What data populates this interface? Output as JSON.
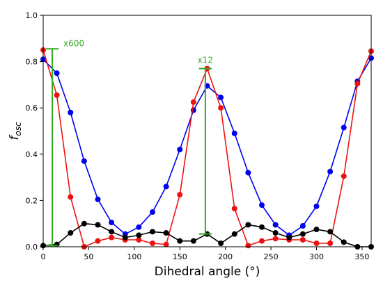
{
  "chart_data": {
    "type": "line",
    "xlabel": "Dihedral angle (°)",
    "ylabel_main": "f",
    "ylabel_sub": "osc",
    "xlim": [
      0,
      360
    ],
    "ylim": [
      0,
      1.0
    ],
    "xticks": [
      0,
      50,
      100,
      150,
      200,
      250,
      300,
      350
    ],
    "yticks": [
      0.0,
      0.2,
      0.4,
      0.6,
      0.8,
      1.0
    ],
    "ytick_labels": [
      "0.0",
      "0.2",
      "0.4",
      "0.6",
      "0.8",
      "1.0"
    ],
    "grid": false,
    "x": [
      0,
      15,
      30,
      45,
      60,
      75,
      90,
      105,
      120,
      135,
      150,
      165,
      180,
      195,
      210,
      225,
      240,
      255,
      270,
      285,
      300,
      315,
      330,
      345,
      360
    ],
    "series": [
      {
        "color": "#0000ee",
        "values": [
          0.81,
          0.75,
          0.58,
          0.37,
          0.205,
          0.105,
          0.055,
          0.085,
          0.15,
          0.26,
          0.42,
          0.59,
          0.695,
          0.645,
          0.49,
          0.32,
          0.18,
          0.095,
          0.05,
          0.09,
          0.175,
          0.325,
          0.515,
          0.715,
          0.815
        ]
      },
      {
        "color": "#ee1111",
        "values": [
          0.85,
          0.655,
          0.215,
          0.0,
          0.025,
          0.04,
          0.03,
          0.03,
          0.015,
          0.01,
          0.225,
          0.625,
          0.77,
          0.6,
          0.165,
          0.005,
          0.025,
          0.035,
          0.03,
          0.03,
          0.015,
          0.015,
          0.305,
          0.705,
          0.845
        ]
      },
      {
        "color": "#000000",
        "values": [
          0.005,
          0.01,
          0.06,
          0.1,
          0.095,
          0.065,
          0.04,
          0.05,
          0.065,
          0.06,
          0.025,
          0.025,
          0.055,
          0.015,
          0.055,
          0.095,
          0.085,
          0.06,
          0.04,
          0.055,
          0.075,
          0.065,
          0.02,
          0.0,
          0.0
        ]
      }
    ],
    "annotations": [
      {
        "label": "x600",
        "x": 10,
        "y_low": 0.005,
        "y_high": 0.855,
        "color": "#33aa22"
      },
      {
        "label": "x12",
        "x": 178,
        "y_low": 0.055,
        "y_high": 0.77,
        "color": "#33aa22"
      }
    ]
  }
}
